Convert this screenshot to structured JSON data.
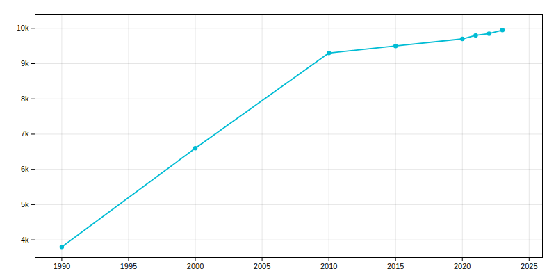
{
  "chart_data": {
    "type": "line",
    "x": [
      1990,
      2000,
      2010,
      2015,
      2020,
      2021,
      2022,
      2023
    ],
    "values": [
      3800,
      6600,
      9300,
      9500,
      9700,
      9800,
      9850,
      9950
    ],
    "color": "#00BCD4",
    "marker": "circle",
    "xlim": [
      1988,
      2026
    ],
    "xticks": [
      1990,
      1995,
      2000,
      2005,
      2010,
      2015,
      2020,
      2025
    ],
    "ylim": [
      3500,
      10400
    ],
    "yticks": [
      {
        "value": 4000,
        "label": "4k"
      },
      {
        "value": 5000,
        "label": "5k"
      },
      {
        "value": 6000,
        "label": "6k"
      },
      {
        "value": 7000,
        "label": "7k"
      },
      {
        "value": 8000,
        "label": "8k"
      },
      {
        "value": 9000,
        "label": "9k"
      },
      {
        "value": 10000,
        "label": "10k"
      }
    ],
    "grid": true
  }
}
